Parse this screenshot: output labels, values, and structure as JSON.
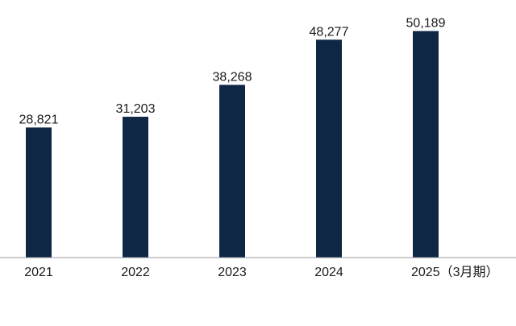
{
  "chart_data": {
    "type": "bar",
    "categories": [
      "2021",
      "2022",
      "2023",
      "2024",
      "2025（3月期）"
    ],
    "values": [
      28821,
      31203,
      38268,
      48277,
      50189
    ],
    "value_labels": [
      "28,821",
      "31,203",
      "38,268",
      "48,277",
      "50,189"
    ],
    "title": "",
    "xlabel": "",
    "ylabel": "",
    "ylim": [
      0,
      56000
    ],
    "grid": false,
    "legend": "none",
    "bar_color": "#0e2745",
    "axis_color": "#999999"
  }
}
